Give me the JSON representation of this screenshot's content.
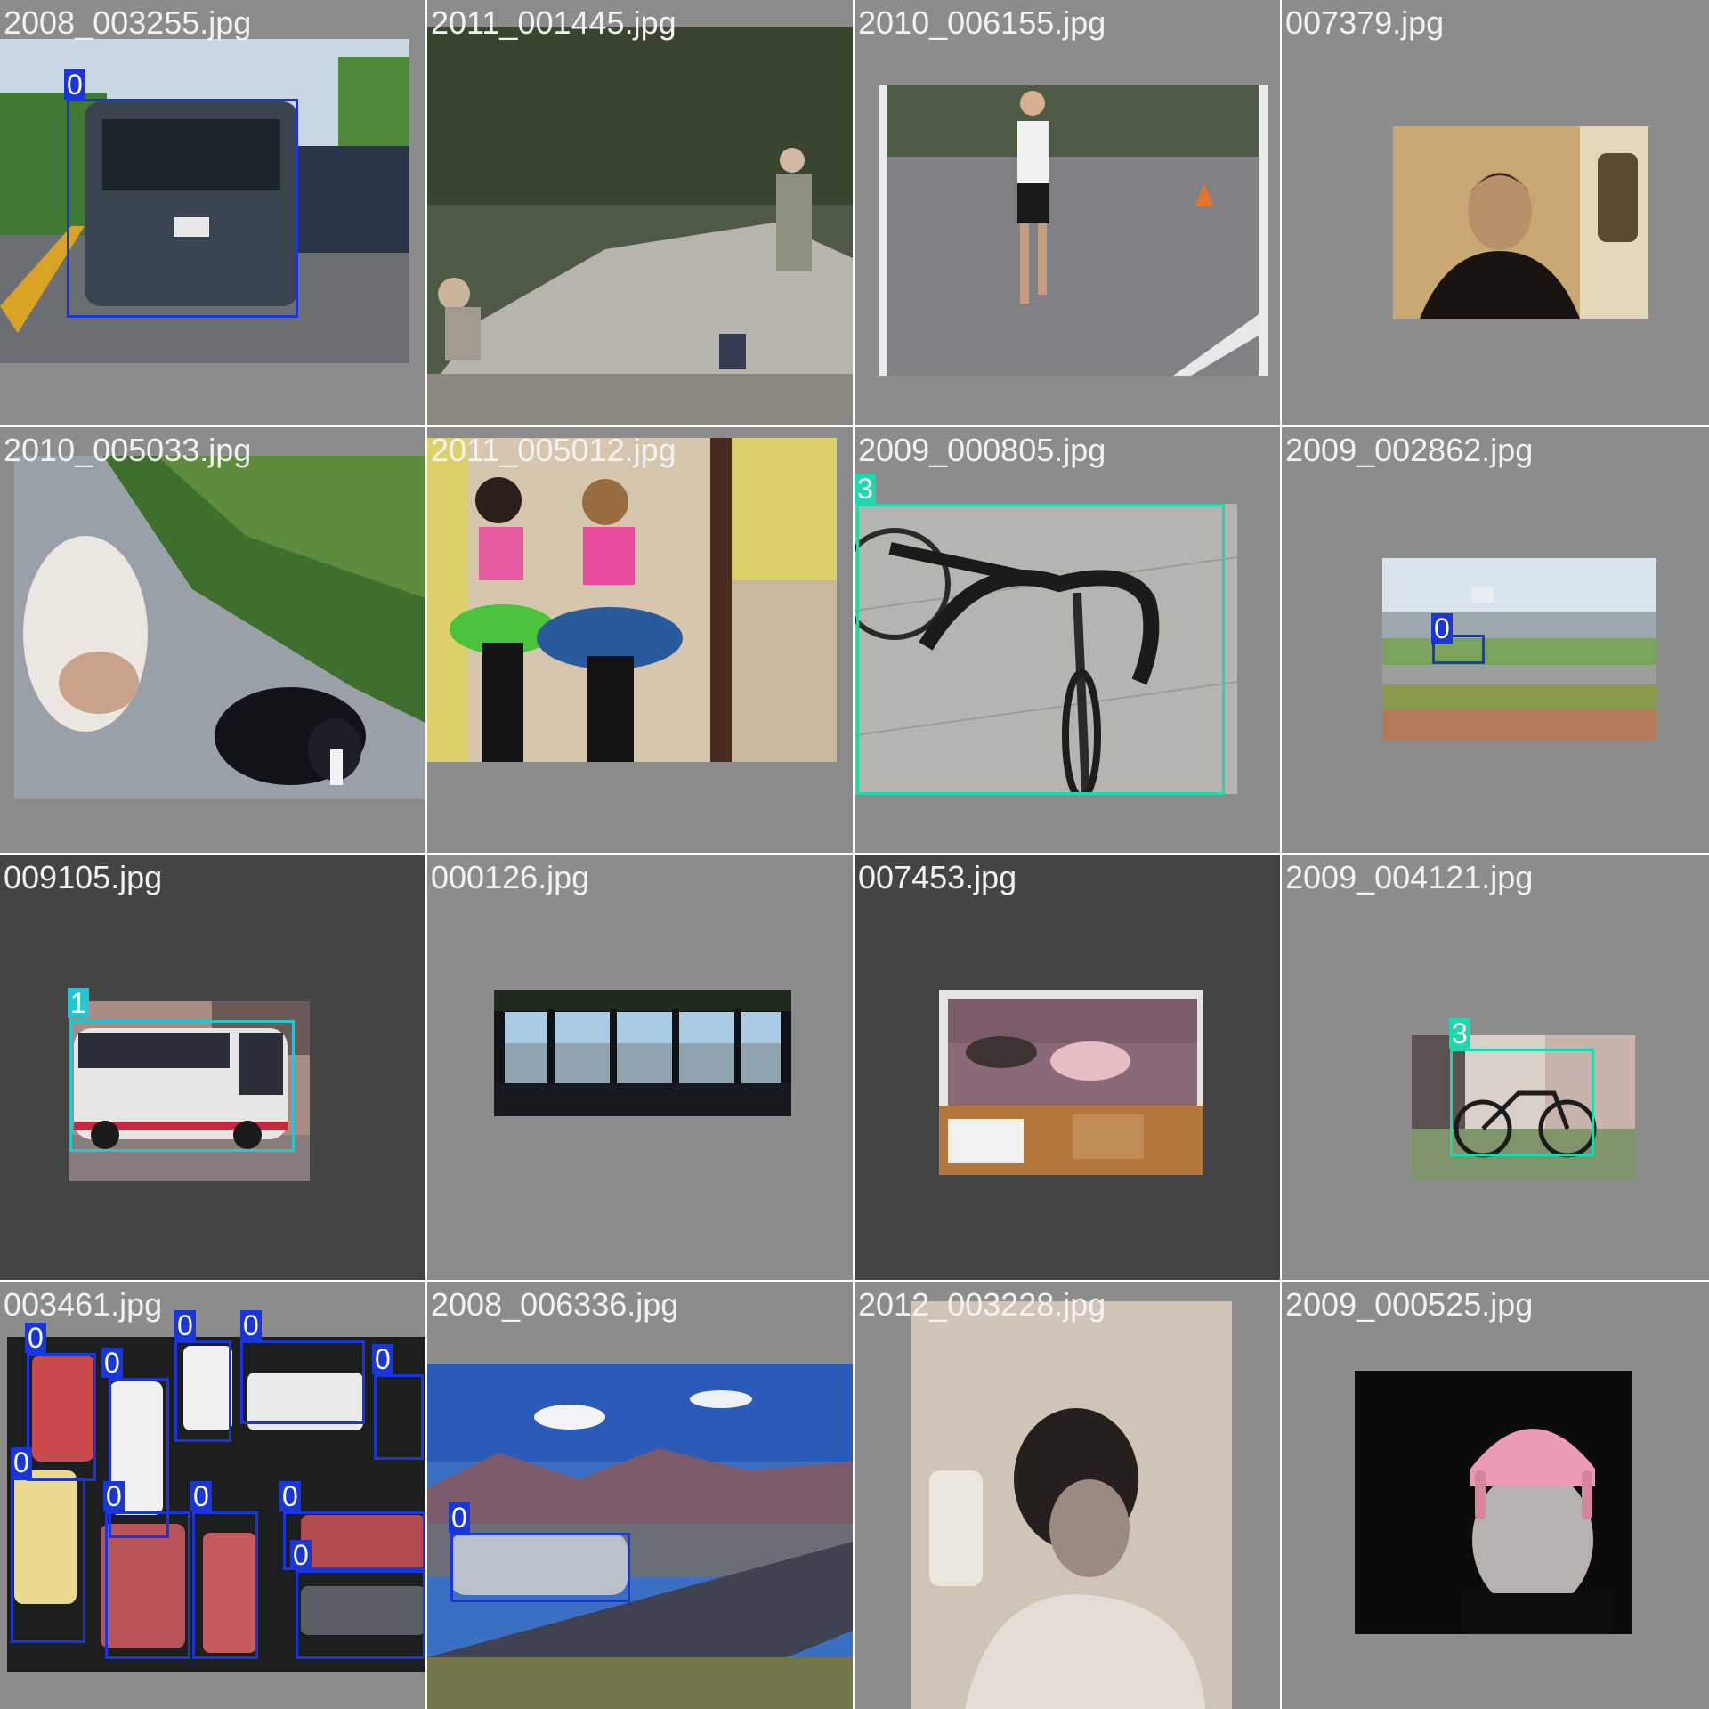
{
  "tiles": [
    {
      "name": "2008_003255.jpg"
    },
    {
      "name": "2011_001445.jpg"
    },
    {
      "name": "2010_006155.jpg"
    },
    {
      "name": "007379.jpg"
    },
    {
      "name": "2010_005033.jpg"
    },
    {
      "name": "2011_005012.jpg"
    },
    {
      "name": "2009_000805.jpg"
    },
    {
      "name": "2009_002862.jpg"
    },
    {
      "name": "009105.jpg"
    },
    {
      "name": "000126.jpg"
    },
    {
      "name": "007453.jpg"
    },
    {
      "name": "2009_004121.jpg"
    },
    {
      "name": "003461.jpg"
    },
    {
      "name": "2008_006336.jpg"
    },
    {
      "name": "2012_003228.jpg"
    },
    {
      "name": "2009_000525.jpg"
    }
  ],
  "labels": {
    "car": "0",
    "bus": "1",
    "bicycle": "3"
  },
  "colors": {
    "class0": "#1a35d8",
    "class1": "#22c7d1",
    "class3": "#1fd6ad",
    "tile_light": "#8c8c8c",
    "tile_dark": "#444444"
  }
}
